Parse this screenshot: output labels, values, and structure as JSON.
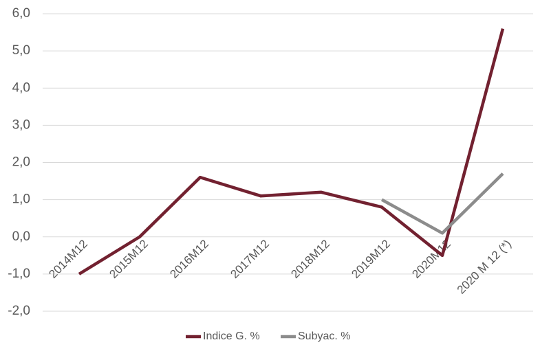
{
  "chart_data": {
    "type": "line",
    "categories": [
      "2014M12",
      "2015M12",
      "2016M12",
      "2017M12",
      "2018M12",
      "2019M12",
      "2020M12",
      "2020 M 12 (*)"
    ],
    "series": [
      {
        "name": "Indice G. %",
        "color": "#722130",
        "values": [
          -1.0,
          0.0,
          1.6,
          1.1,
          1.2,
          0.8,
          -0.5,
          5.6
        ]
      },
      {
        "name": "Subyac. %",
        "color": "#8c8c8c",
        "values": [
          null,
          null,
          null,
          null,
          null,
          1.0,
          0.1,
          1.7
        ]
      }
    ],
    "ylim": [
      -2,
      6
    ],
    "yticks": [
      {
        "value": -2,
        "label": "-2,0"
      },
      {
        "value": -1,
        "label": "-1,0"
      },
      {
        "value": 0,
        "label": "0,0"
      },
      {
        "value": 1,
        "label": "1,0"
      },
      {
        "value": 2,
        "label": "2,0"
      },
      {
        "value": 3,
        "label": "3,0"
      },
      {
        "value": 4,
        "label": "4,0"
      },
      {
        "value": 5,
        "label": "5,0"
      },
      {
        "value": 6,
        "label": "6,0"
      }
    ],
    "grid": true,
    "legend": "bottom"
  }
}
